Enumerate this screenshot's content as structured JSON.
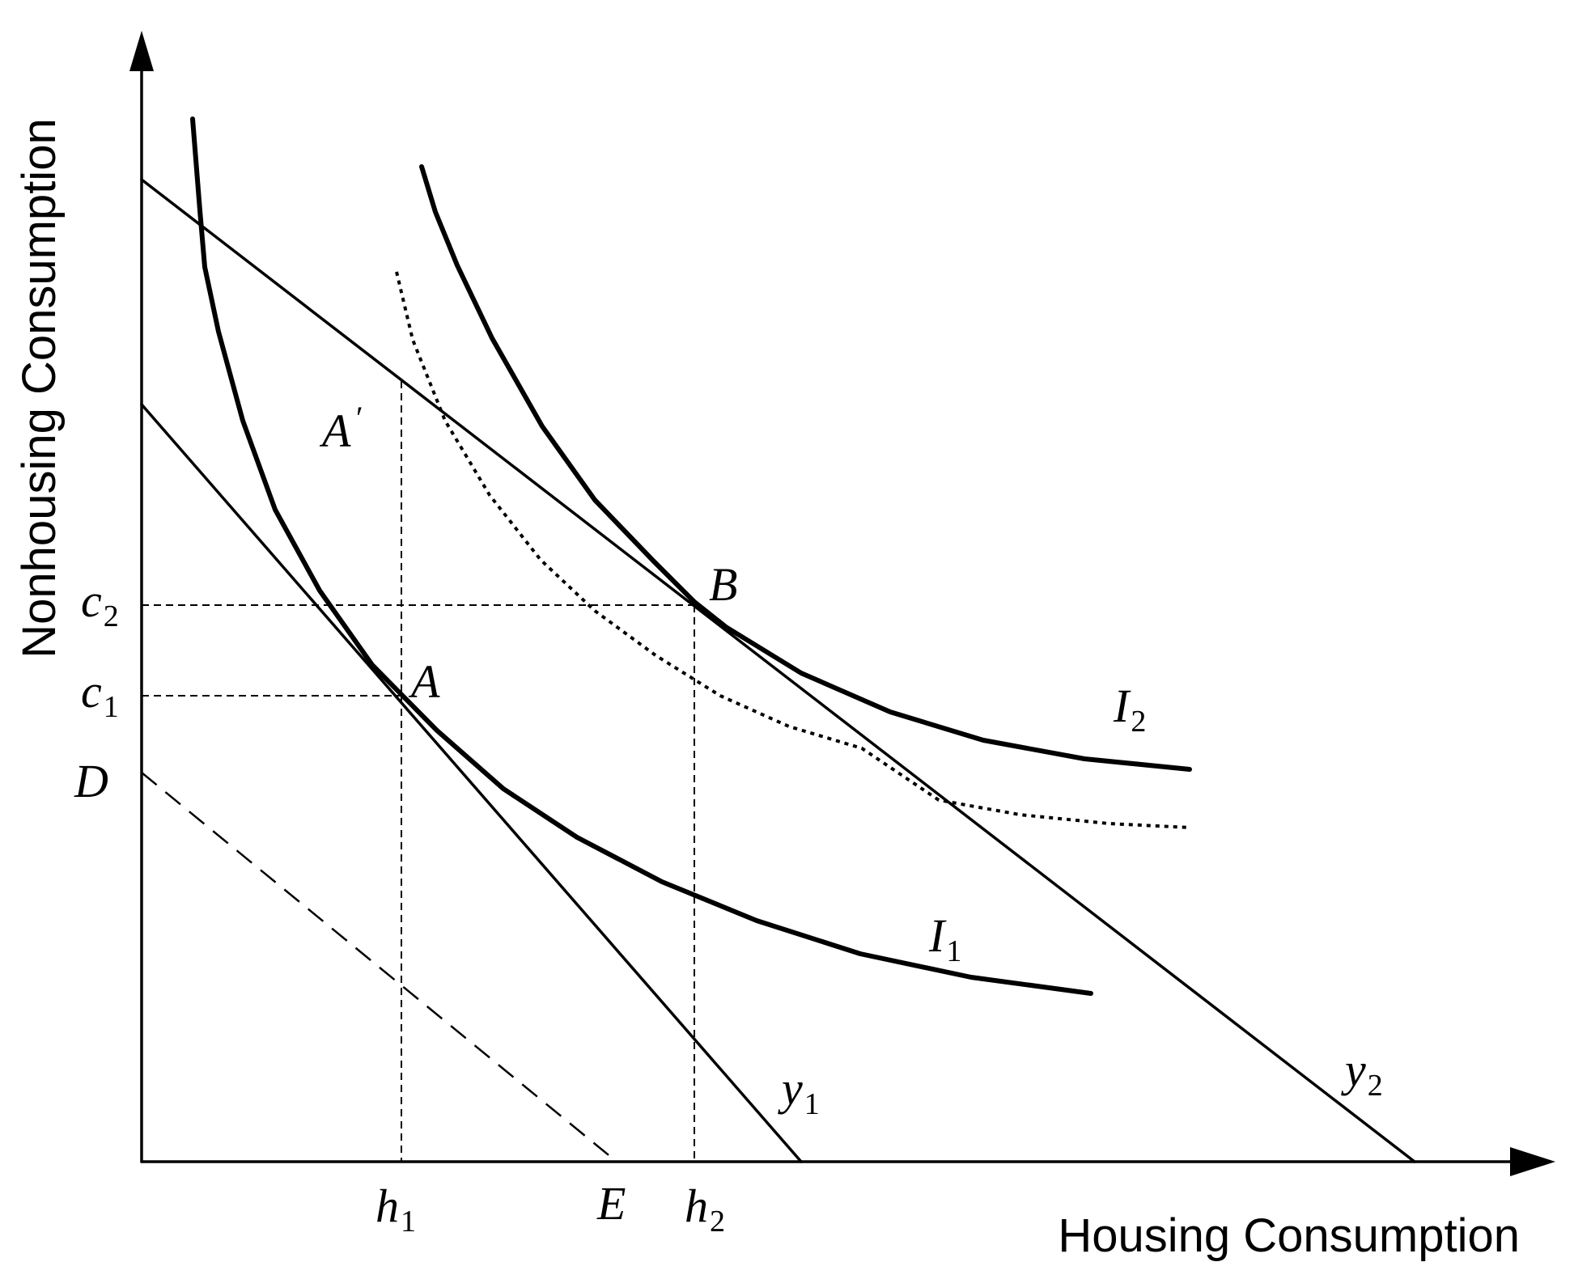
{
  "axes": {
    "x_title": "Housing Consumption",
    "y_title": "Nonhousing Consumption"
  },
  "lines": {
    "y1": {
      "name": "y",
      "sub": "1"
    },
    "y2": {
      "name": "y",
      "sub": "2"
    },
    "DE": {
      "start_label": "D",
      "end_label": "E",
      "style": "dashed"
    }
  },
  "curves": {
    "I1": {
      "name": "I",
      "sub": "1"
    },
    "I2": {
      "name": "I",
      "sub": "2"
    },
    "dotted_indifference": {
      "style": "dotted"
    }
  },
  "points": {
    "A": "A",
    "A_prime": "A",
    "A_prime_mark": "′",
    "B": "B"
  },
  "ticks": {
    "h1": {
      "name": "h",
      "sub": "1"
    },
    "h2": {
      "name": "h",
      "sub": "2"
    },
    "c1": {
      "name": "c",
      "sub": "1"
    },
    "c2": {
      "name": "c",
      "sub": "2"
    }
  }
}
